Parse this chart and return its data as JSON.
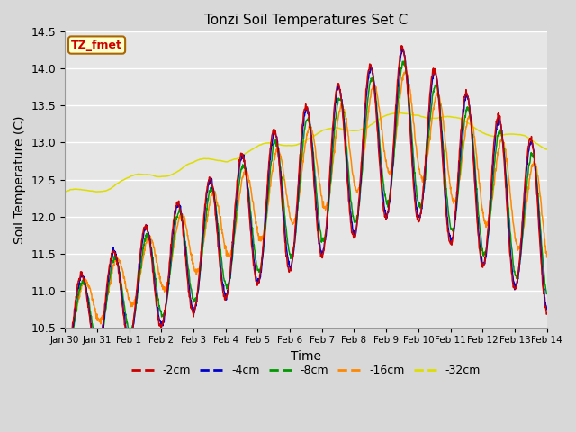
{
  "title": "Tonzi Soil Temperatures Set C",
  "xlabel": "Time",
  "ylabel": "Soil Temperature (C)",
  "ylim": [
    10.5,
    14.5
  ],
  "colors": {
    "-2cm": "#cc0000",
    "-4cm": "#0000cc",
    "-8cm": "#009900",
    "-16cm": "#ff8800",
    "-32cm": "#dddd00"
  },
  "background_color": "#e6e6e6",
  "grid_color": "#ffffff",
  "tick_labels": [
    "Jan 30",
    "Jan 31",
    "Feb 1",
    "Feb 2",
    "Feb 3",
    "Feb 4",
    "Feb 5",
    "Feb 6",
    "Feb 7",
    "Feb 8",
    "Feb 9",
    "Feb 10",
    "Feb 11",
    "Feb 12",
    "Feb 13",
    "Feb 14"
  ],
  "tick_positions": [
    0,
    1,
    2,
    3,
    4,
    5,
    6,
    7,
    8,
    9,
    10,
    11,
    12,
    13,
    14,
    15
  ],
  "yticks": [
    10.5,
    11.0,
    11.5,
    12.0,
    12.5,
    13.0,
    13.5,
    14.0,
    14.5
  ],
  "legend_label": "TZ_fmet"
}
